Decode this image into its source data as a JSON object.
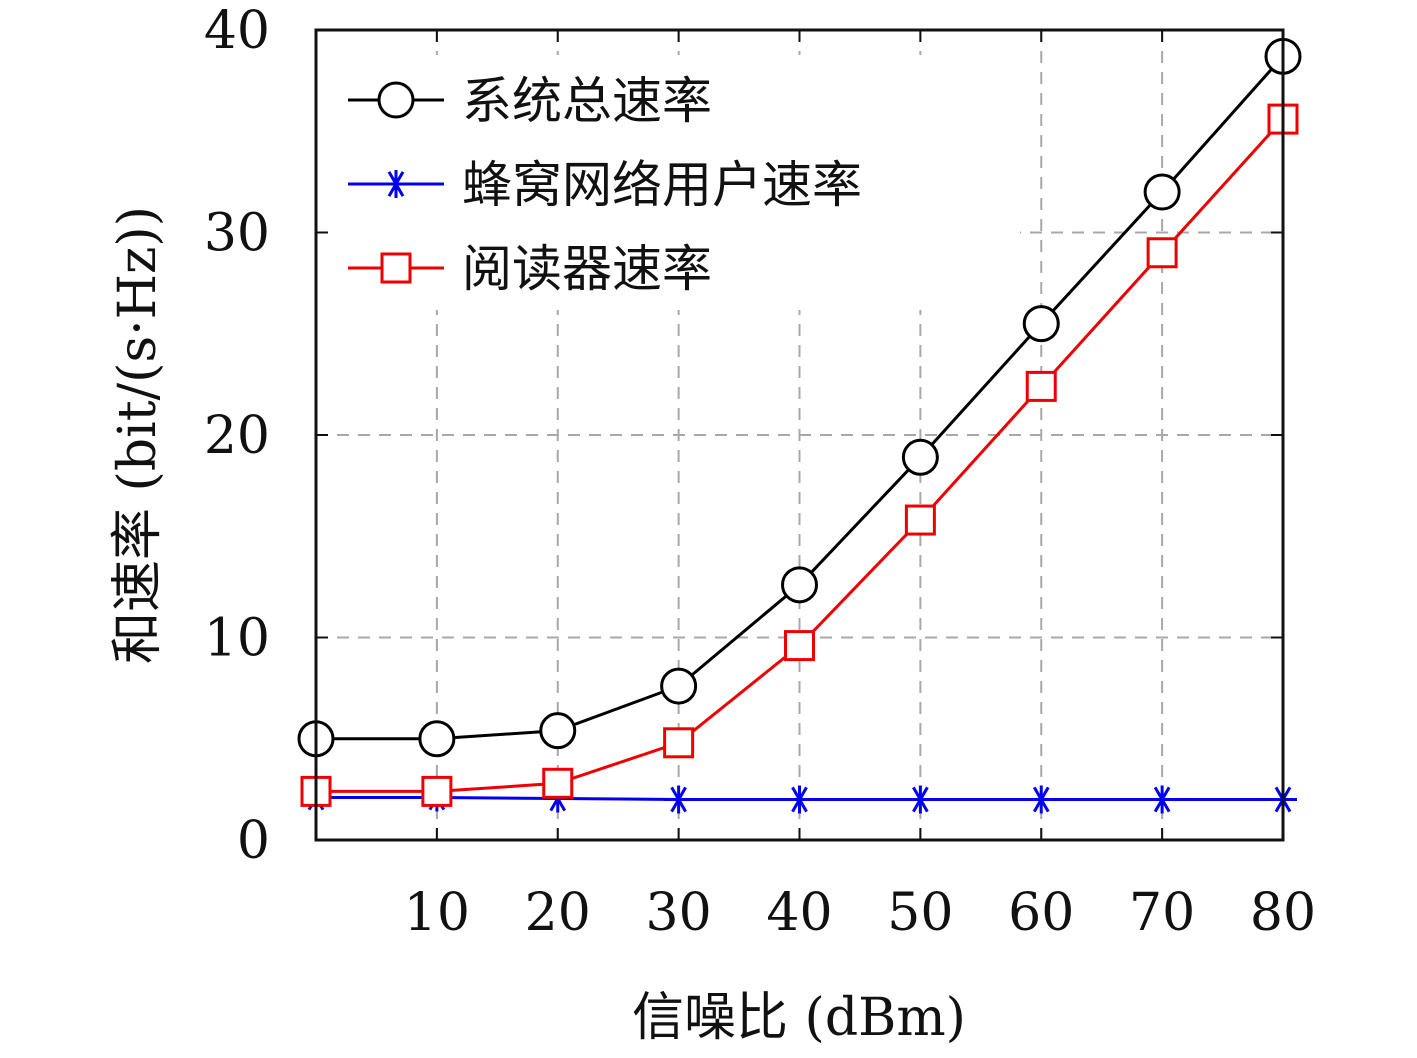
{
  "chart_data": {
    "type": "line",
    "x": [
      0,
      10,
      20,
      30,
      40,
      50,
      60,
      70,
      80
    ],
    "xticks": [
      10,
      20,
      30,
      40,
      50,
      60,
      70,
      80
    ],
    "yticks": [
      0,
      10,
      20,
      30,
      40
    ],
    "xlim": [
      0,
      80
    ],
    "ylim": [
      0,
      40
    ],
    "xlabel": "信噪比 (dBm)",
    "ylabel": "和速率 (bit/(s·Hz))",
    "grid": true,
    "legend_position": "top-left",
    "series": [
      {
        "name": "系统总速率",
        "marker": "circle",
        "color": "#000000",
        "values": [
          5.0,
          5.0,
          5.4,
          7.6,
          12.6,
          18.9,
          25.5,
          32.0,
          38.7
        ]
      },
      {
        "name": "蜂窝网络用户速率",
        "marker": "asterisk",
        "color": "#0000ee",
        "values": [
          2.1,
          2.1,
          2.05,
          2.0,
          2.0,
          2.0,
          2.0,
          2.0,
          2.0
        ]
      },
      {
        "name": "阅读器速率",
        "marker": "square",
        "color": "#ee0000",
        "values": [
          2.4,
          2.4,
          2.8,
          4.8,
          9.6,
          15.8,
          22.4,
          29.0,
          35.6
        ]
      }
    ]
  }
}
